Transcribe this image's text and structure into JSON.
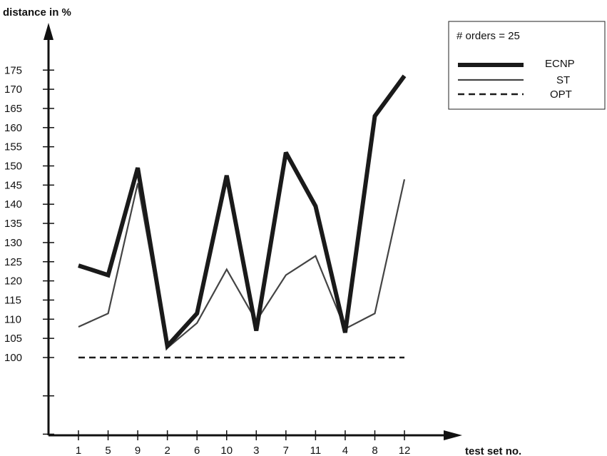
{
  "chart_data": {
    "type": "line",
    "title": "",
    "ylabel": "distance in %",
    "xlabel": "test set  no.",
    "categories": [
      "1",
      "5",
      "9",
      "2",
      "6",
      "10",
      "3",
      "7",
      "11",
      "4",
      "8",
      "12"
    ],
    "y_ticks": [
      100,
      105,
      110,
      115,
      120,
      125,
      130,
      135,
      140,
      145,
      150,
      155,
      160,
      165,
      170,
      175
    ],
    "ylim": [
      80,
      180
    ],
    "grid": false,
    "legend_position": "top-right",
    "legend_header": "# orders = 25",
    "series": [
      {
        "name": "ECNP",
        "values": [
          124,
          121.5,
          149.5,
          103,
          111.5,
          147.5,
          107,
          153.5,
          139.5,
          106.5,
          163,
          173.5
        ],
        "color": "#1a1a1a",
        "style": "thick"
      },
      {
        "name": "ST",
        "values": [
          108,
          111.5,
          145.5,
          102.5,
          109,
          123,
          109.5,
          121.5,
          126.5,
          107.5,
          111.5,
          146.5
        ],
        "color": "#444444",
        "style": "thin"
      },
      {
        "name": "OPT",
        "values": [
          100,
          100,
          100,
          100,
          100,
          100,
          100,
          100,
          100,
          100,
          100,
          100
        ],
        "color": "#1a1a1a",
        "style": "dashed"
      }
    ]
  }
}
